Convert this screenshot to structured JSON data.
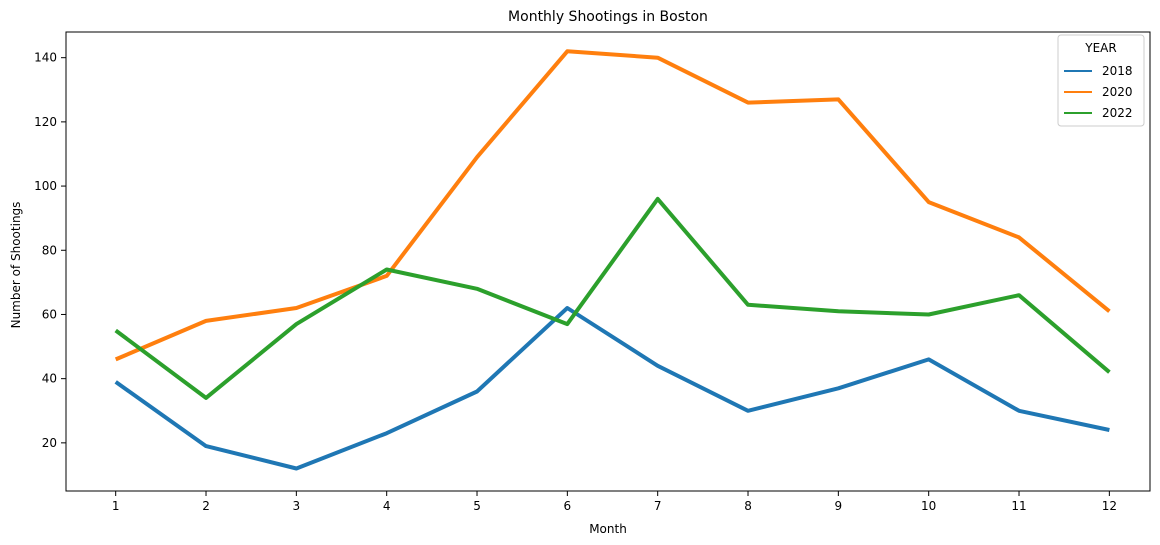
{
  "chart_data": {
    "type": "line",
    "title": "Monthly Shootings in Boston",
    "xlabel": "Month",
    "ylabel": "Number of Shootings",
    "x": [
      1,
      2,
      3,
      4,
      5,
      6,
      7,
      8,
      9,
      10,
      11,
      12
    ],
    "xlim": [
      0.45,
      12.45
    ],
    "ylim": [
      5,
      148
    ],
    "yticks": [
      20,
      40,
      60,
      80,
      100,
      120,
      140
    ],
    "grid": false,
    "legend": {
      "title": "YEAR",
      "placement": "top-right"
    },
    "series": [
      {
        "name": "2018",
        "color": "#1f77b4",
        "values": [
          39,
          19,
          12,
          23,
          36,
          62,
          44,
          30,
          37,
          46,
          30,
          24
        ]
      },
      {
        "name": "2020",
        "color": "#ff7f0e",
        "values": [
          46,
          58,
          62,
          72,
          109,
          142,
          140,
          126,
          127,
          95,
          84,
          61
        ]
      },
      {
        "name": "2022",
        "color": "#2ca02c",
        "values": [
          55,
          34,
          57,
          74,
          68,
          57,
          96,
          63,
          61,
          60,
          66,
          42
        ]
      }
    ]
  }
}
